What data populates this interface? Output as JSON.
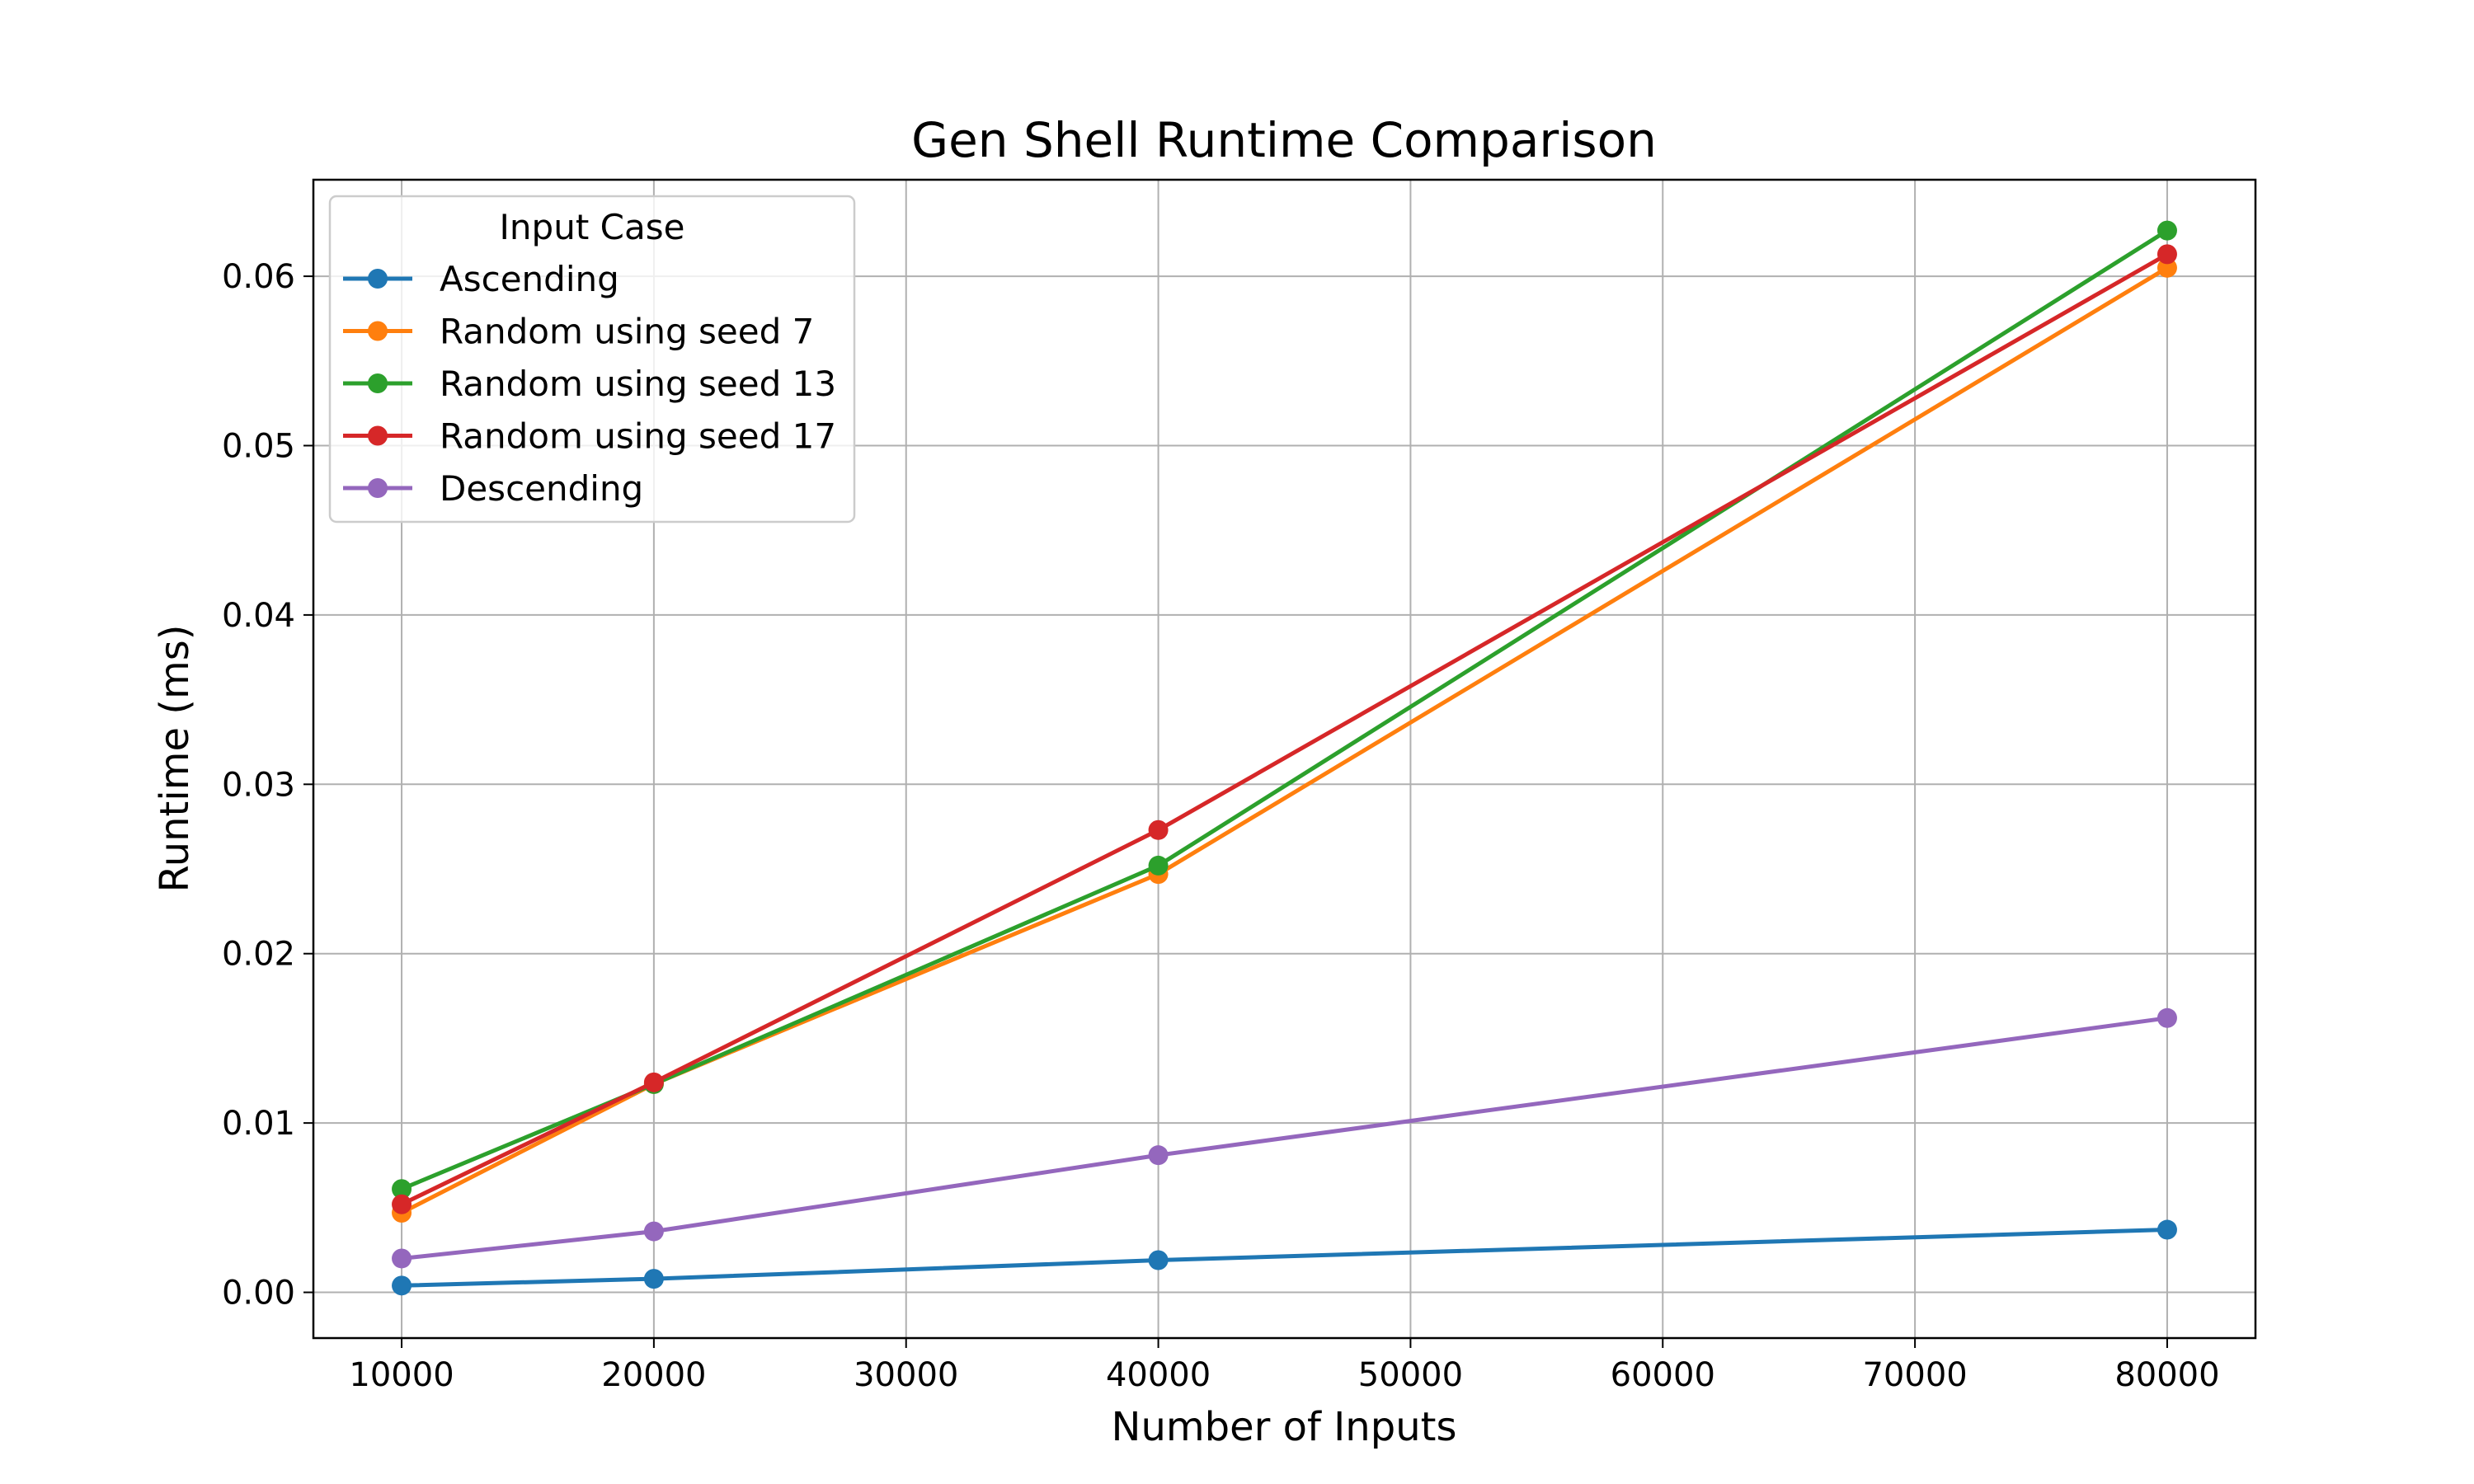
{
  "chart_data": {
    "type": "line",
    "title": "Gen Shell Runtime Comparison",
    "xlabel": "Number of Inputs",
    "ylabel": "Runtime (ms)",
    "xlim": [
      6500,
      83500
    ],
    "ylim": [
      -0.0027,
      0.0657
    ],
    "xticks": [
      10000,
      20000,
      30000,
      40000,
      50000,
      60000,
      70000,
      80000
    ],
    "xtick_labels": [
      "10000",
      "20000",
      "30000",
      "40000",
      "50000",
      "60000",
      "70000",
      "80000"
    ],
    "yticks": [
      0.0,
      0.01,
      0.02,
      0.03,
      0.04,
      0.05,
      0.06
    ],
    "ytick_labels": [
      "0.00",
      "0.01",
      "0.02",
      "0.03",
      "0.04",
      "0.05",
      "0.06"
    ],
    "grid": true,
    "legend_title": "Input Case",
    "legend_position": "top-left",
    "x": [
      10000,
      20000,
      40000,
      80000
    ],
    "series": [
      {
        "name": "Ascending",
        "color": "#1f77b4",
        "values": [
          0.0004,
          0.0008,
          0.0019,
          0.0037
        ]
      },
      {
        "name": "Random using seed 7",
        "color": "#ff7f0e",
        "values": [
          0.0047,
          0.0123,
          0.0247,
          0.0605
        ]
      },
      {
        "name": "Random using seed 13",
        "color": "#2ca02c",
        "values": [
          0.0061,
          0.0123,
          0.0252,
          0.0627
        ]
      },
      {
        "name": "Random using seed 17",
        "color": "#d62728",
        "values": [
          0.0052,
          0.0124,
          0.0273,
          0.0613
        ]
      },
      {
        "name": "Descending",
        "color": "#9467bd",
        "values": [
          0.002,
          0.0036,
          0.0081,
          0.0162
        ]
      }
    ]
  }
}
